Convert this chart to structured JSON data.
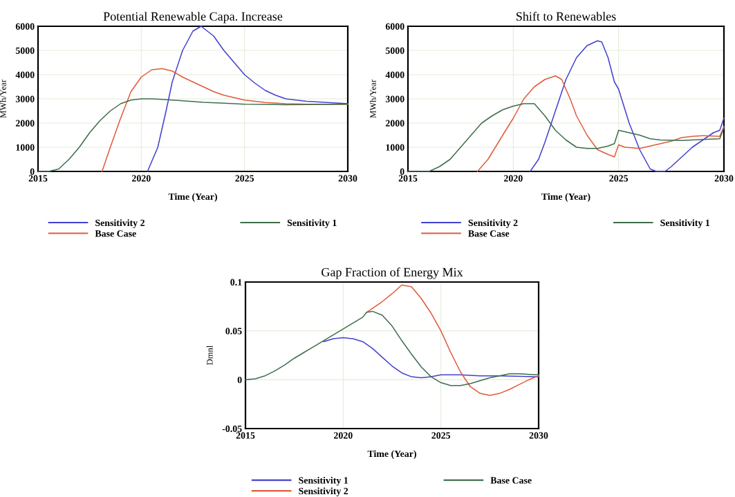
{
  "chart_data": [
    {
      "type": "line",
      "title": "Potential Renewable Capa. Increase",
      "xlabel": "Time (Year)",
      "ylabel": "MWh/Year",
      "xlim": [
        2015,
        2030
      ],
      "xticks": [
        2015,
        2020,
        2025,
        2030
      ],
      "ylim": [
        0,
        6000
      ],
      "yticks": [
        0,
        1000,
        2000,
        3000,
        4000,
        5000,
        6000
      ],
      "grid": true,
      "legend": "bottom",
      "series": [
        {
          "name": "Sensitivity 2",
          "color": "#4040d0",
          "x": [
            2020.3,
            2020.8,
            2021.2,
            2021.5,
            2022,
            2022.5,
            2022.9,
            2023.5,
            2024,
            2024.5,
            2025,
            2025.5,
            2026,
            2026.5,
            2027,
            2028,
            2029,
            2030
          ],
          "values": [
            0,
            1000,
            2500,
            3700,
            5000,
            5800,
            6000,
            5600,
            5000,
            4500,
            4000,
            3650,
            3350,
            3150,
            3000,
            2900,
            2850,
            2800
          ]
        },
        {
          "name": "Base Case",
          "color": "#e05a3a",
          "x": [
            2018.1,
            2018.5,
            2019,
            2019.5,
            2020,
            2020.5,
            2021,
            2021.5,
            2022,
            2022.5,
            2023,
            2023.5,
            2024,
            2025,
            2026,
            2027,
            2028,
            2030
          ],
          "values": [
            0,
            1000,
            2200,
            3300,
            3900,
            4200,
            4250,
            4150,
            3900,
            3700,
            3500,
            3300,
            3150,
            2950,
            2850,
            2800,
            2780,
            2780
          ]
        },
        {
          "name": "Sensitivity 1",
          "color": "#3d6e4a",
          "x": [
            2015,
            2015.5,
            2016,
            2016.5,
            2017,
            2017.5,
            2018,
            2018.5,
            2019,
            2019.5,
            2020,
            2020.5,
            2021,
            2022,
            2023,
            2024,
            2025,
            2026,
            2027,
            2030
          ],
          "values": [
            0,
            0,
            100,
            500,
            1000,
            1600,
            2100,
            2500,
            2800,
            2950,
            3000,
            3000,
            2980,
            2920,
            2860,
            2820,
            2780,
            2770,
            2760,
            2780
          ]
        }
      ]
    },
    {
      "type": "line",
      "title": "Shift to Renewables",
      "xlabel": "Time (Year)",
      "ylabel": "MWh/Year",
      "xlim": [
        2015,
        2030
      ],
      "xticks": [
        2015,
        2020,
        2025,
        2030
      ],
      "ylim": [
        0,
        6000
      ],
      "yticks": [
        0,
        1000,
        2000,
        3000,
        4000,
        5000,
        6000
      ],
      "grid": true,
      "legend": "bottom",
      "series": [
        {
          "name": "Sensitivity 2",
          "color": "#4040d0",
          "x": [
            2020.8,
            2021.2,
            2021.5,
            2022,
            2022.5,
            2023,
            2023.5,
            2024,
            2024.2,
            2024.5,
            2024.8,
            2025,
            2025.5,
            2026,
            2026.5,
            2026.8,
            2027.2,
            2027.5,
            2028,
            2028.5,
            2029,
            2029.5,
            2029.8,
            2030
          ],
          "values": [
            0,
            500,
            1200,
            2500,
            3800,
            4700,
            5200,
            5400,
            5350,
            4700,
            3700,
            3400,
            2000,
            900,
            100,
            0,
            0,
            200,
            600,
            1000,
            1300,
            1600,
            1700,
            2200
          ]
        },
        {
          "name": "Base Case",
          "color": "#e05a3a",
          "x": [
            2018.3,
            2018.8,
            2019.5,
            2020,
            2020.5,
            2021,
            2021.5,
            2022,
            2022.3,
            2022.7,
            2023,
            2023.5,
            2024,
            2024.5,
            2024.8,
            2025,
            2025.3,
            2026,
            2026.5,
            2027,
            2027.5,
            2028,
            2028.5,
            2029,
            2029.8,
            2030
          ],
          "values": [
            0,
            500,
            1500,
            2200,
            3000,
            3500,
            3800,
            3950,
            3800,
            3000,
            2300,
            1500,
            900,
            700,
            600,
            1100,
            1000,
            950,
            1050,
            1150,
            1250,
            1400,
            1450,
            1480,
            1450,
            1850
          ]
        },
        {
          "name": "Sensitivity 1",
          "color": "#3d6e4a",
          "x": [
            2015,
            2016,
            2016.5,
            2017,
            2017.5,
            2018,
            2018.5,
            2019,
            2019.5,
            2020,
            2020.5,
            2021,
            2021.5,
            2022,
            2022.5,
            2023,
            2023.5,
            2024,
            2024.5,
            2024.8,
            2025,
            2025.5,
            2026,
            2026.5,
            2027,
            2028,
            2029,
            2029.8,
            2030
          ],
          "values": [
            0,
            0,
            200,
            500,
            1000,
            1500,
            2000,
            2300,
            2550,
            2700,
            2800,
            2800,
            2300,
            1700,
            1300,
            1000,
            950,
            950,
            1050,
            1150,
            1700,
            1600,
            1500,
            1350,
            1300,
            1280,
            1320,
            1350,
            1800
          ]
        }
      ]
    },
    {
      "type": "line",
      "title": "Gap Fraction of Energy Mix",
      "xlabel": "Time (Year)",
      "ylabel": "Dmnl",
      "xlim": [
        2015,
        2030
      ],
      "xticks": [
        2015,
        2020,
        2025,
        2030
      ],
      "ylim": [
        -0.05,
        0.1
      ],
      "yticks": [
        {
          "value": -0.05,
          "label": "-0.05"
        },
        0,
        0.05,
        0.1
      ],
      "grid": true,
      "legend": "bottom",
      "series": [
        {
          "name": "Sensitivity 1",
          "color": "#4040d0",
          "x": [
            2019,
            2019.5,
            2020,
            2020.5,
            2021,
            2021.5,
            2022,
            2022.5,
            2023,
            2023.5,
            2024,
            2024.5,
            2025,
            2026,
            2027,
            2028,
            2030
          ],
          "values": [
            0.039,
            0.042,
            0.043,
            0.042,
            0.039,
            0.032,
            0.023,
            0.014,
            0.007,
            0.003,
            0.002,
            0.003,
            0.005,
            0.005,
            0.004,
            0.004,
            0.003
          ]
        },
        {
          "name": "Sensitivity 2",
          "color": "#e05a3a",
          "x": [
            2021.2,
            2021.5,
            2022,
            2022.5,
            2023,
            2023.5,
            2024,
            2024.5,
            2025,
            2025.5,
            2026,
            2026.5,
            2027,
            2027.5,
            2028,
            2028.5,
            2029,
            2029.5,
            2030
          ],
          "values": [
            0.069,
            0.073,
            0.08,
            0.088,
            0.097,
            0.095,
            0.083,
            0.068,
            0.05,
            0.028,
            0.008,
            -0.007,
            -0.014,
            -0.016,
            -0.014,
            -0.01,
            -0.005,
            0.0,
            0.004
          ]
        },
        {
          "name": "Base Case",
          "color": "#3d6e4a",
          "x": [
            2015,
            2015.5,
            2016,
            2016.5,
            2017,
            2017.5,
            2018,
            2018.5,
            2019,
            2019.5,
            2020,
            2020.5,
            2021,
            2021.2,
            2021.5,
            2022,
            2022.5,
            2023,
            2023.5,
            2024,
            2024.5,
            2025,
            2025.5,
            2026,
            2026.5,
            2027,
            2027.5,
            2028,
            2028.5,
            2029,
            2030
          ],
          "values": [
            0,
            0.001,
            0.004,
            0.009,
            0.015,
            0.022,
            0.028,
            0.034,
            0.04,
            0.046,
            0.052,
            0.058,
            0.064,
            0.069,
            0.07,
            0.066,
            0.055,
            0.04,
            0.026,
            0.013,
            0.003,
            -0.003,
            -0.006,
            -0.006,
            -0.004,
            -0.001,
            0.002,
            0.004,
            0.006,
            0.006,
            0.005
          ]
        }
      ]
    }
  ]
}
